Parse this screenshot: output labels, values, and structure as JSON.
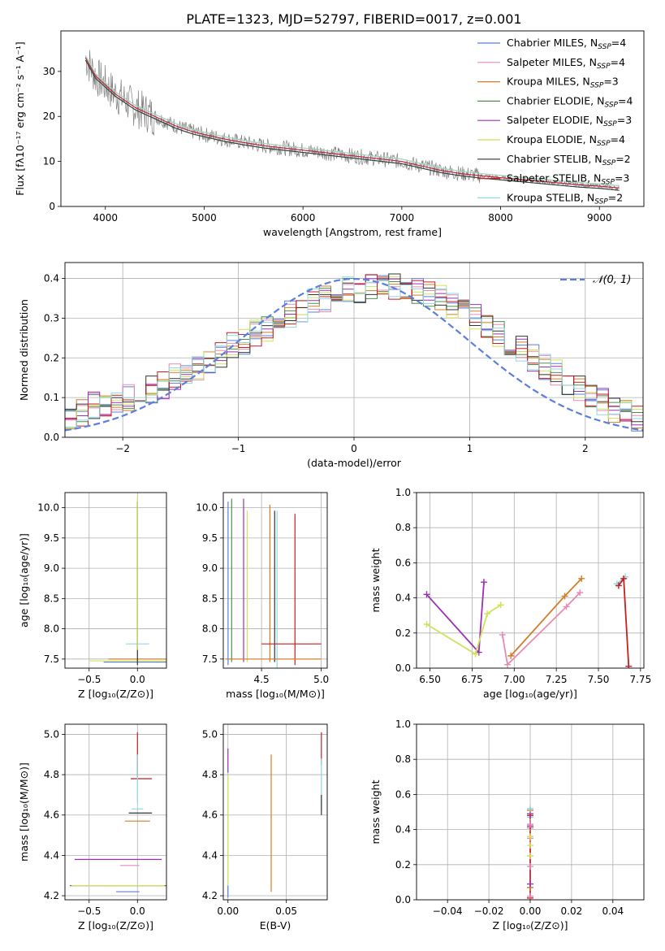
{
  "title": "PLATE=1323, MJD=52797, FIBERID=0017, z=0.001",
  "chart_data": [
    {
      "id": "spectrum",
      "type": "line",
      "xlabel": "wavelength [Angstrom, rest frame]",
      "ylabel": "Flux [fλ10⁻¹⁷ erg cm⁻² s⁻¹ A⁻¹]",
      "xlim": [
        3550,
        9450
      ],
      "ylim": [
        0,
        39
      ],
      "xticks": [
        4000,
        5000,
        6000,
        7000,
        8000,
        9000
      ],
      "yticks": [
        0,
        10,
        20,
        30
      ],
      "xtick_labels": [
        "4000",
        "5000",
        "6000",
        "7000",
        "8000",
        "9000"
      ],
      "ytick_labels": [
        "0",
        "10",
        "20",
        "30"
      ],
      "grid": false,
      "legend_position": "top-right",
      "data_series": {
        "name": "",
        "color": "#808080",
        "x": [
          3800,
          3850,
          3900,
          3950,
          4000,
          4100,
          4200,
          4300,
          4400,
          4500,
          4600,
          4700,
          4800,
          4900,
          5000,
          5200,
          5400,
          5600,
          5800,
          6000,
          6200,
          6400,
          6600,
          6800,
          7000,
          7200,
          7400,
          7600,
          7800,
          8000,
          8200,
          8400,
          8600,
          8800,
          9000,
          9200
        ],
        "y": [
          33,
          31,
          29,
          28,
          27,
          25,
          23.5,
          22,
          21,
          20,
          19,
          18,
          17.2,
          16.5,
          16,
          15,
          14.2,
          13.5,
          13,
          12.5,
          12,
          11.5,
          11,
          10.5,
          10,
          9,
          8,
          7.3,
          6.8,
          6.4,
          6,
          5.6,
          5.2,
          4.8,
          4.5,
          4.1
        ]
      },
      "legend": [
        {
          "text": "Chabrier MILES, N",
          "sub": "SSP",
          "suffix": "=4",
          "color": "#5b7fdd"
        },
        {
          "text": "Salpeter MILES, N",
          "sub": "SSP",
          "suffix": "=4",
          "color": "#e68bb5"
        },
        {
          "text": "Kroupa MILES, N",
          "sub": "SSP",
          "suffix": "=3",
          "color": "#d17e29"
        },
        {
          "text": "Chabrier ELODIE, N",
          "sub": "SSP",
          "suffix": "=4",
          "color": "#4e8f4e"
        },
        {
          "text": "Salpeter ELODIE, N",
          "sub": "SSP",
          "suffix": "=3",
          "color": "#9b30b5"
        },
        {
          "text": "Kroupa ELODIE, N",
          "sub": "SSP",
          "suffix": "=4",
          "color": "#cfe35a"
        },
        {
          "text": "Chabrier STELIB, N",
          "sub": "SSP",
          "suffix": "=2",
          "color": "#333333"
        },
        {
          "text": "Salpeter STELIB, N",
          "sub": "SSP",
          "suffix": "=3",
          "color": "#c81f1f"
        },
        {
          "text": "Kroupa STELIB, N",
          "sub": "SSP",
          "suffix": "=2",
          "color": "#8fd8e0"
        }
      ]
    },
    {
      "id": "residuals",
      "type": "line",
      "xlabel": "(data-model)/error",
      "ylabel": "Normed distribution",
      "xlim": [
        -2.5,
        2.5
      ],
      "ylim": [
        0,
        0.44
      ],
      "xticks": [
        -2,
        -1,
        0,
        1,
        2
      ],
      "yticks": [
        0.0,
        0.1,
        0.2,
        0.3,
        0.4
      ],
      "xtick_labels": [
        "−2",
        "−1",
        "0",
        "1",
        "2"
      ],
      "ytick_labels": [
        "0.0",
        "0.1",
        "0.2",
        "0.3",
        "0.4"
      ],
      "grid": true,
      "legend_position": "top-right",
      "legend": [
        {
          "text": "𝒩(0, 1)",
          "color": "#5b7fdd"
        }
      ],
      "hist_x_start": -2.5,
      "hist_bin_width": 0.1,
      "hist_values": [
        0.05,
        0.06,
        0.08,
        0.08,
        0.09,
        0.1,
        0.11,
        0.12,
        0.13,
        0.15,
        0.16,
        0.17,
        0.19,
        0.21,
        0.23,
        0.24,
        0.26,
        0.27,
        0.29,
        0.31,
        0.32,
        0.34,
        0.35,
        0.36,
        0.37,
        0.37,
        0.38,
        0.38,
        0.38,
        0.37,
        0.37,
        0.36,
        0.35,
        0.33,
        0.32,
        0.3,
        0.28,
        0.26,
        0.24,
        0.22,
        0.2,
        0.18,
        0.16,
        0.14,
        0.12,
        0.1,
        0.09,
        0.07,
        0.06,
        0.05
      ]
    },
    {
      "id": "age-vs-Z",
      "type": "scatter",
      "xlabel": "Z [log₁₀(Z/Z⊙)]",
      "ylabel": "age  [log₁₀(age/yr)]",
      "xlim": [
        -0.75,
        0.3
      ],
      "ylim": [
        7.35,
        10.25
      ],
      "xticks": [
        -0.5,
        0.0
      ],
      "yticks": [
        7.5,
        8.0,
        8.5,
        9.0,
        9.5,
        10.0
      ],
      "xtick_labels": [
        "−0.5",
        "0.0"
      ],
      "ytick_labels": [
        "7.5",
        "8.0",
        "8.5",
        "9.0",
        "9.5",
        "10.0"
      ],
      "grid": true,
      "points": [
        {
          "x": 0.0,
          "y": 7.45,
          "xerr": 0.35,
          "yerr": 0.0,
          "color": "#5b7fdd"
        },
        {
          "x": 0.0,
          "y": 7.5,
          "xerr": 0.3,
          "yerr": 0.0,
          "color": "#d17e29"
        },
        {
          "x": 0.0,
          "y": 7.47,
          "xerr": 0.5,
          "yerr": 0.0,
          "color": "#cfe35a"
        },
        {
          "x": 0.0,
          "y": 7.75,
          "xerr": 0.12,
          "yerr": 0.0,
          "color": "#8fd8e0"
        },
        {
          "x": 0.0,
          "y": 8.75,
          "xerr": 0.0,
          "yerr": 1.35,
          "color": "#333333"
        },
        {
          "x": 0.0,
          "y": 8.9,
          "xerr": 0.0,
          "yerr": 1.25,
          "color": "#cfe35a"
        }
      ]
    },
    {
      "id": "age-vs-mass",
      "type": "scatter",
      "xlabel": "mass [log₁₀(M/M⊙)]",
      "ylabel": "",
      "xlim": [
        4.18,
        5.05
      ],
      "ylim": [
        7.35,
        10.25
      ],
      "xticks": [
        4.5,
        5.0
      ],
      "yticks": [
        7.5,
        8.0,
        8.5,
        9.0,
        9.5,
        10.0
      ],
      "xtick_labels": [
        "4.5",
        "5.0"
      ],
      "ytick_labels": [
        "7.5",
        "8.0",
        "8.5",
        "9.0",
        "9.5",
        "10.0"
      ],
      "grid": true,
      "points": [
        {
          "x": 4.22,
          "y": 8.75,
          "xerr": 0.0,
          "yerr": 1.35,
          "color": "#5b7fdd"
        },
        {
          "x": 4.25,
          "y": 8.8,
          "xerr": 0.0,
          "yerr": 1.35,
          "color": "#4e8f4e"
        },
        {
          "x": 4.35,
          "y": 8.8,
          "xerr": 0.0,
          "yerr": 1.35,
          "color": "#9b30b5"
        },
        {
          "x": 4.38,
          "y": 8.7,
          "xerr": 0.0,
          "yerr": 1.25,
          "color": "#cfe35a"
        },
        {
          "x": 4.57,
          "y": 8.75,
          "xerr": 0.0,
          "yerr": 1.3,
          "color": "#d17e29"
        },
        {
          "x": 4.61,
          "y": 8.7,
          "xerr": 0.0,
          "yerr": 1.25,
          "color": "#333333"
        },
        {
          "x": 4.63,
          "y": 8.65,
          "xerr": 0.0,
          "yerr": 1.3,
          "color": "#8fd8e0"
        },
        {
          "x": 4.78,
          "y": 8.65,
          "xerr": 0.0,
          "yerr": 1.25,
          "color": "#c81f1f"
        },
        {
          "x": 4.6,
          "y": 7.5,
          "xerr": 0.4,
          "yerr": 0.0,
          "color": "#d17e29"
        },
        {
          "x": 4.75,
          "y": 7.75,
          "xerr": 0.25,
          "yerr": 0.0,
          "color": "#c81f1f"
        }
      ]
    },
    {
      "id": "massweight-vs-age",
      "type": "line",
      "xlabel": "age  [log₁₀(age/yr)]",
      "ylabel": "mass weight",
      "xlim": [
        6.42,
        7.77
      ],
      "ylim": [
        0,
        1
      ],
      "xticks": [
        6.5,
        6.75,
        7.0,
        7.25,
        7.5,
        7.75
      ],
      "yticks": [
        0.0,
        0.2,
        0.4,
        0.6,
        0.8,
        1.0
      ],
      "xtick_labels": [
        "6.50",
        "6.75",
        "7.00",
        "7.25",
        "7.50",
        "7.75"
      ],
      "ytick_labels": [
        "0.0",
        "0.2",
        "0.4",
        "0.6",
        "0.8",
        "1.0"
      ],
      "grid": true,
      "series": [
        {
          "color": "#9b30b5",
          "x": [
            6.48,
            6.79,
            6.82
          ],
          "y": [
            0.42,
            0.09,
            0.49
          ]
        },
        {
          "color": "#cfe35a",
          "x": [
            6.48,
            6.77,
            6.84,
            6.92
          ],
          "y": [
            0.25,
            0.08,
            0.31,
            0.36
          ]
        },
        {
          "color": "#d17e29",
          "x": [
            6.98,
            7.3,
            7.4
          ],
          "y": [
            0.07,
            0.41,
            0.51
          ]
        },
        {
          "color": "#e68bb5",
          "x": [
            6.93,
            6.96,
            7.31,
            7.39
          ],
          "y": [
            0.19,
            0.02,
            0.35,
            0.43
          ]
        },
        {
          "color": "#8fd8e0",
          "x": [
            7.61,
            7.66
          ],
          "y": [
            0.48,
            0.52
          ]
        },
        {
          "color": "#c81f1f",
          "x": [
            7.62,
            7.65,
            7.68
          ],
          "y": [
            0.47,
            0.51,
            0.01
          ]
        }
      ]
    },
    {
      "id": "mass-vs-Z",
      "type": "scatter",
      "xlabel": "Z [log₁₀(Z/Z⊙)]",
      "ylabel": "mass [log₁₀(M/M⊙)]",
      "xlim": [
        -0.75,
        0.3
      ],
      "ylim": [
        4.18,
        5.05
      ],
      "xticks": [
        -0.5,
        0.0
      ],
      "yticks": [
        4.2,
        4.4,
        4.6,
        4.8,
        5.0
      ],
      "xtick_labels": [
        "−0.5",
        "0.0"
      ],
      "ytick_labels": [
        "4.2",
        "4.4",
        "4.6",
        "4.8",
        "5.0"
      ],
      "grid": true,
      "points": [
        {
          "x": -0.1,
          "y": 4.22,
          "xerr": 0.12,
          "yerr": 0.0,
          "color": "#5b7fdd"
        },
        {
          "x": -0.2,
          "y": 4.25,
          "xerr": 0.5,
          "yerr": 0.0,
          "color": "#4e8f4e"
        },
        {
          "x": -0.2,
          "y": 4.25,
          "xerr": 0.48,
          "yerr": 0.0,
          "color": "#cfe35a"
        },
        {
          "x": -0.08,
          "y": 4.35,
          "xerr": 0.1,
          "yerr": 0.0,
          "color": "#e68bb5"
        },
        {
          "x": -0.2,
          "y": 4.38,
          "xerr": 0.45,
          "yerr": 0.0,
          "color": "#9b30b5"
        },
        {
          "x": 0.0,
          "y": 4.57,
          "xerr": 0.13,
          "yerr": 0.0,
          "color": "#d17e29"
        },
        {
          "x": 0.03,
          "y": 4.61,
          "xerr": 0.12,
          "yerr": 0.0,
          "color": "#333333"
        },
        {
          "x": 0.0,
          "y": 4.63,
          "xerr": 0.06,
          "yerr": 0.0,
          "color": "#8fd8e0"
        },
        {
          "x": 0.04,
          "y": 4.78,
          "xerr": 0.11,
          "yerr": 0.0,
          "color": "#c81f1f"
        },
        {
          "x": 0.0,
          "y": 4.9,
          "xerr": 0.0,
          "yerr": 0.11,
          "color": "#c81f1f"
        },
        {
          "x": 0.0,
          "y": 4.78,
          "xerr": 0.0,
          "yerr": 0.12,
          "color": "#8fd8e0"
        }
      ]
    },
    {
      "id": "mass-vs-EBV",
      "type": "scatter",
      "xlabel": "E(B-V)",
      "ylabel": "",
      "xlim": [
        -0.004,
        0.085
      ],
      "ylim": [
        4.18,
        5.05
      ],
      "xticks": [
        0.0,
        0.05
      ],
      "yticks": [
        4.2,
        4.4,
        4.6,
        4.8,
        5.0
      ],
      "xtick_labels": [
        "0.00",
        "0.05"
      ],
      "ytick_labels": [
        "4.2",
        "4.4",
        "4.6",
        "4.8",
        "5.0"
      ],
      "grid": true,
      "points": [
        {
          "x": 0.0,
          "y": 4.87,
          "xerr": 0.0,
          "yerr": 0.06,
          "color": "#9b30b5"
        },
        {
          "x": 0.0,
          "y": 4.5,
          "xerr": 0.0,
          "yerr": 0.3,
          "color": "#cfe35a"
        },
        {
          "x": 0.0,
          "y": 4.22,
          "xerr": 0.0,
          "yerr": 0.03,
          "color": "#5b7fdd"
        },
        {
          "x": 0.037,
          "y": 4.56,
          "xerr": 0.0,
          "yerr": 0.34,
          "color": "#d17e29"
        },
        {
          "x": 0.08,
          "y": 4.93,
          "xerr": 0.0,
          "yerr": 0.08,
          "color": "#c81f1f"
        },
        {
          "x": 0.08,
          "y": 4.75,
          "xerr": 0.0,
          "yerr": 0.13,
          "color": "#8fd8e0"
        },
        {
          "x": 0.08,
          "y": 4.65,
          "xerr": 0.0,
          "yerr": 0.05,
          "color": "#333333"
        }
      ]
    },
    {
      "id": "massweight-vs-Z",
      "type": "scatter",
      "xlabel": "Z [log₁₀(Z/Z⊙)]",
      "ylabel": "mass weight",
      "xlim": [
        -0.055,
        0.055
      ],
      "ylim": [
        0,
        1
      ],
      "xticks": [
        -0.04,
        -0.02,
        0.0,
        0.02,
        0.04
      ],
      "yticks": [
        0.0,
        0.2,
        0.4,
        0.6,
        0.8,
        1.0
      ],
      "xtick_labels": [
        "−0.04",
        "−0.02",
        "0.00",
        "0.02",
        "0.04"
      ],
      "ytick_labels": [
        "0.0",
        "0.2",
        "0.4",
        "0.6",
        "0.8",
        "1.0"
      ],
      "grid": true,
      "points_y": [
        0.01,
        0.02,
        0.07,
        0.09,
        0.19,
        0.25,
        0.31,
        0.35,
        0.36,
        0.41,
        0.42,
        0.43,
        0.47,
        0.48,
        0.49,
        0.51,
        0.52
      ],
      "point_colors": [
        "#c81f1f",
        "#e68bb5",
        "#d17e29",
        "#9b30b5",
        "#e68bb5",
        "#cfe35a",
        "#cfe35a",
        "#e68bb5",
        "#cfe35a",
        "#d17e29",
        "#9b30b5",
        "#e68bb5",
        "#8fd8e0",
        "#c81f1f",
        "#9b30b5",
        "#d17e29",
        "#8fd8e0"
      ]
    }
  ]
}
